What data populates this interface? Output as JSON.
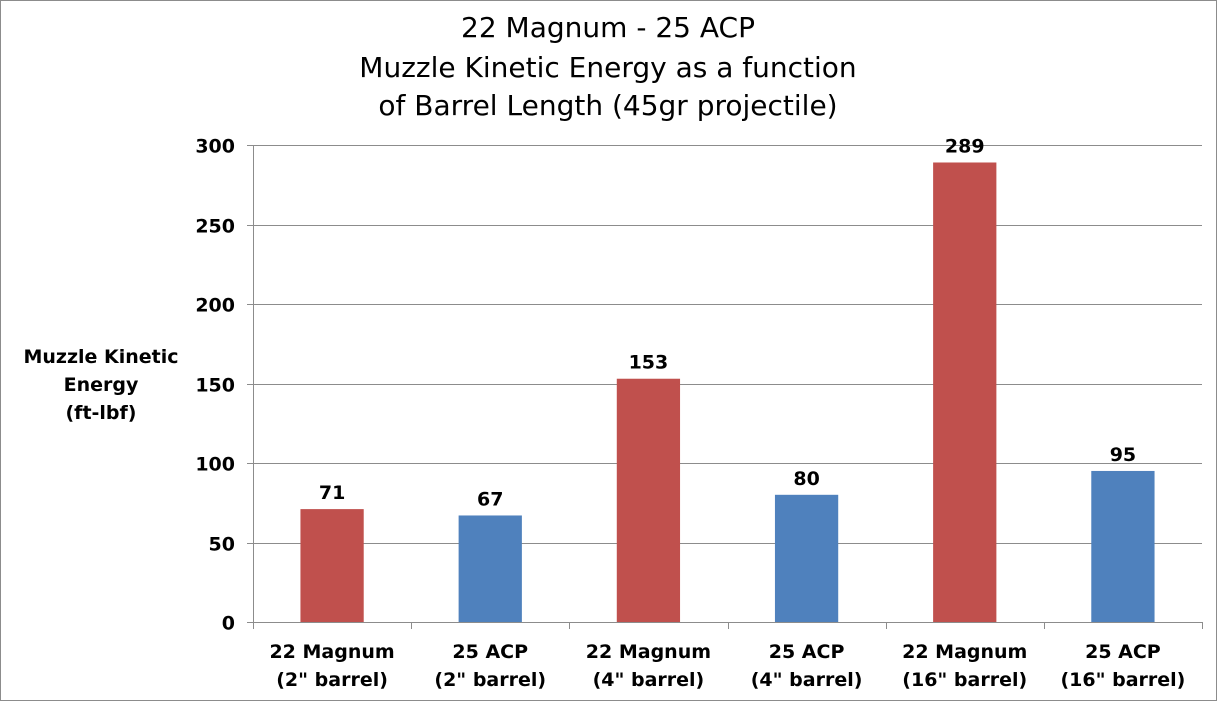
{
  "chart_data": {
    "type": "bar",
    "title_lines": [
      "22 Magnum - 25 ACP",
      "Muzzle Kinetic Energy as a function",
      "of Barrel Length (45gr projectile)"
    ],
    "ylabel_lines": [
      "Muzzle Kinetic",
      "Energy",
      "(ft-lbf)"
    ],
    "xlabel": "",
    "ylim": [
      0,
      300
    ],
    "yticks": [
      "0",
      "50",
      "100",
      "150",
      "200",
      "250",
      "300"
    ],
    "grid": true,
    "legend": "none",
    "categories": [
      [
        "22 Magnum",
        "(2\" barrel)"
      ],
      [
        "25 ACP",
        "(2\" barrel)"
      ],
      [
        "22 Magnum",
        "(4\" barrel)"
      ],
      [
        "25 ACP",
        "(4\" barrel)"
      ],
      [
        "22 Magnum",
        "(16\" barrel)"
      ],
      [
        "25 ACP",
        "(16\" barrel)"
      ]
    ],
    "values": [
      71,
      67,
      153,
      80,
      289,
      95
    ],
    "value_labels": [
      "71",
      "67",
      "153",
      "80",
      "289",
      "95"
    ],
    "bar_colors": [
      "#c0504d",
      "#4f81bd",
      "#c0504d",
      "#4f81bd",
      "#c0504d",
      "#4f81bd"
    ],
    "colors": {
      "magnum": "#c0504d",
      "acp": "#4f81bd",
      "grid": "#8c8c8c",
      "axis": "#8c8c8c"
    }
  }
}
